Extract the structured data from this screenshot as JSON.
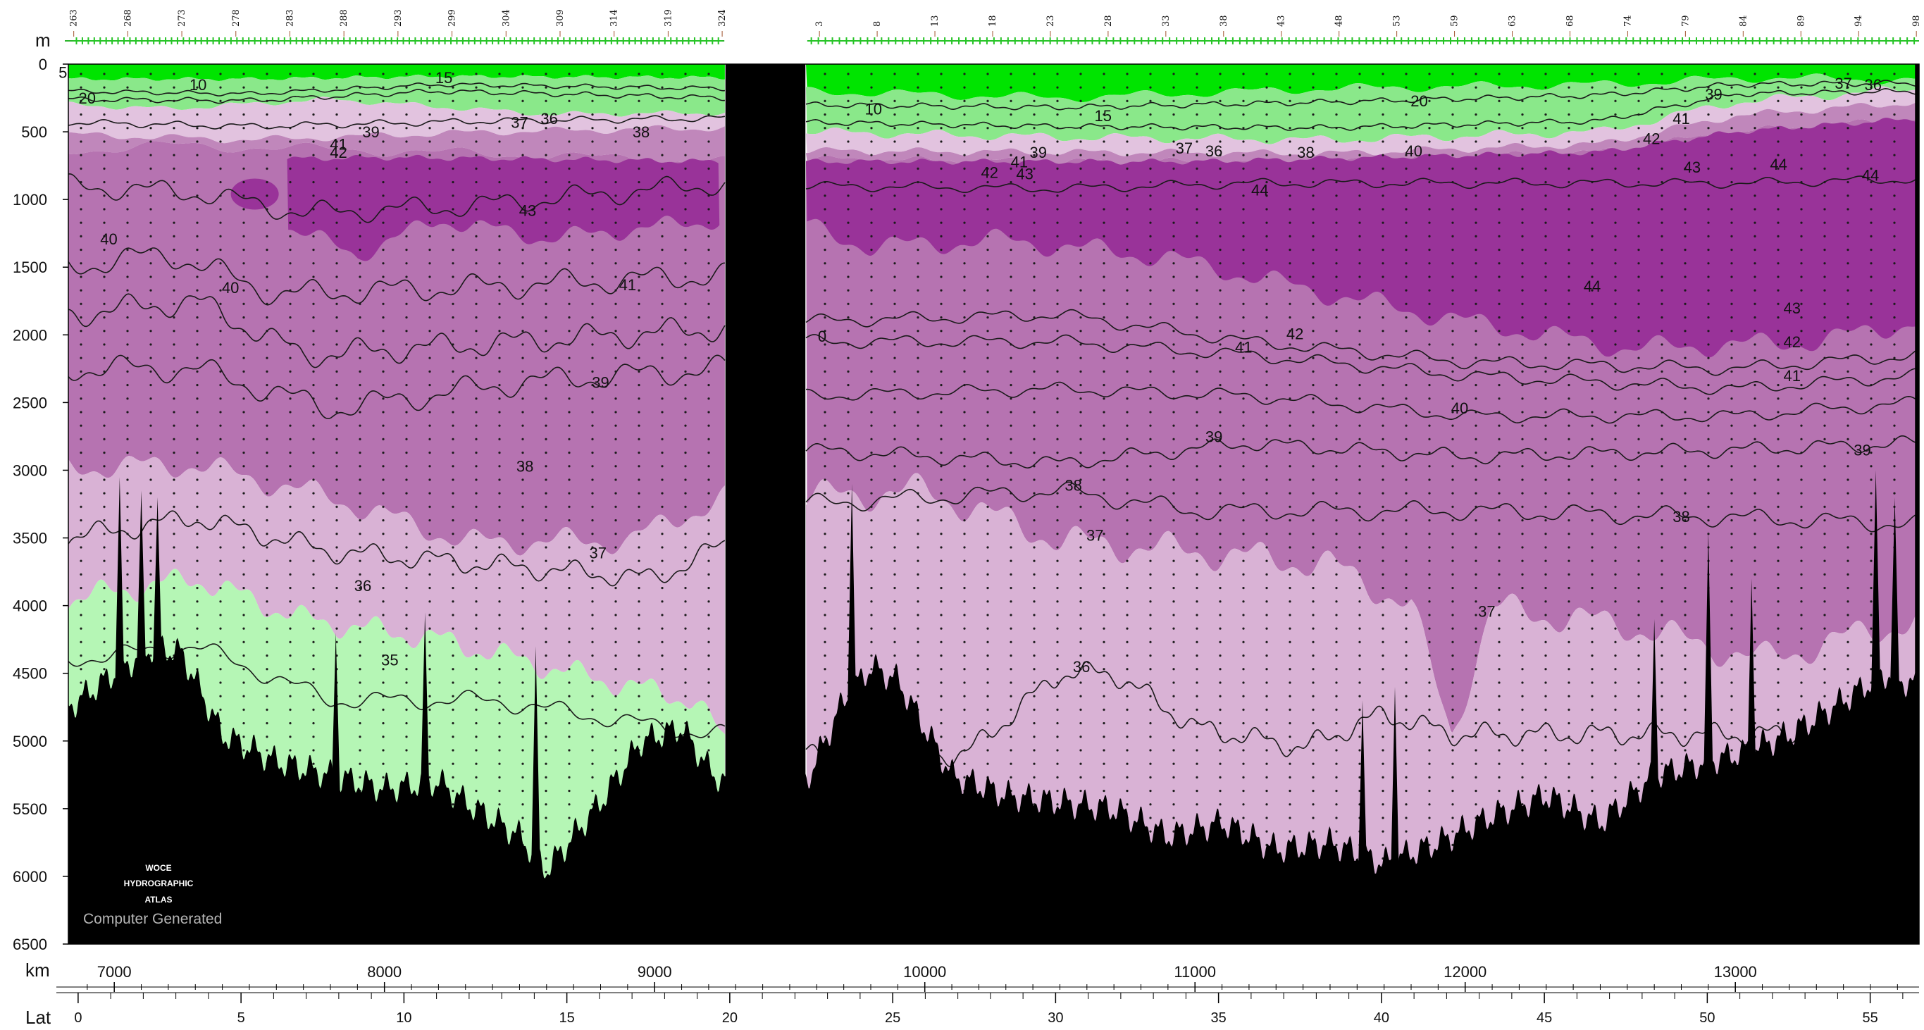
{
  "chart_data": {
    "type": "section-contour",
    "depth_axis": {
      "label": "m",
      "ticks": [
        0,
        500,
        1000,
        1500,
        2000,
        2500,
        3000,
        3500,
        4000,
        4500,
        5000,
        5500,
        6000,
        6500
      ],
      "range": [
        0,
        6500
      ]
    },
    "distance_axis": {
      "label": "km",
      "ticks": [
        7000,
        8000,
        9000,
        10000,
        11000,
        12000,
        13000
      ],
      "range": [
        6830,
        13680
      ]
    },
    "latitude_axis": {
      "label": "Lat",
      "ticks": [
        0,
        5,
        10,
        15,
        20,
        25,
        30,
        35,
        40,
        45,
        50,
        55
      ],
      "range": [
        -0.3,
        56.5
      ]
    },
    "stations": {
      "left": [
        "263",
        "268",
        "273",
        "278",
        "283",
        "288",
        "293",
        "299",
        "304",
        "309",
        "314",
        "319",
        "324"
      ],
      "right": [
        "3",
        "8",
        "13",
        "18",
        "23",
        "28",
        "33",
        "38",
        "43",
        "48",
        "53",
        "59",
        "63",
        "68",
        "74",
        "79",
        "84",
        "89",
        "94",
        "98"
      ]
    },
    "contour_levels": [
      5,
      10,
      15,
      20,
      35,
      36,
      37,
      38,
      39,
      40,
      41,
      42,
      43,
      44
    ],
    "contour_labels": [
      {
        "text": "5",
        "km": 6810,
        "m": 60
      },
      {
        "text": "10",
        "km": 7310,
        "m": 150
      },
      {
        "text": "15",
        "km": 8220,
        "m": 100
      },
      {
        "text": "20",
        "km": 6900,
        "m": 250
      },
      {
        "text": "37",
        "km": 8500,
        "m": 430
      },
      {
        "text": "36",
        "km": 8610,
        "m": 400
      },
      {
        "text": "38",
        "km": 8950,
        "m": 500
      },
      {
        "text": "39",
        "km": 7950,
        "m": 500
      },
      {
        "text": "41",
        "km": 7830,
        "m": 590
      },
      {
        "text": "42",
        "km": 7830,
        "m": 650
      },
      {
        "text": "43",
        "km": 8530,
        "m": 1080
      },
      {
        "text": "40",
        "km": 6980,
        "m": 1290
      },
      {
        "text": "40",
        "km": 7430,
        "m": 1650
      },
      {
        "text": "41",
        "km": 8900,
        "m": 1630
      },
      {
        "text": "39",
        "km": 8800,
        "m": 2350
      },
      {
        "text": "38",
        "km": 8520,
        "m": 2970
      },
      {
        "text": "37",
        "km": 8790,
        "m": 3610
      },
      {
        "text": "36",
        "km": 7920,
        "m": 3850
      },
      {
        "text": "35",
        "km": 8020,
        "m": 4400
      },
      {
        "text": "10",
        "km": 9810,
        "m": 330
      },
      {
        "text": "15",
        "km": 10660,
        "m": 380
      },
      {
        "text": "37",
        "km": 10960,
        "m": 620
      },
      {
        "text": "36",
        "km": 11070,
        "m": 640
      },
      {
        "text": "38",
        "km": 11410,
        "m": 650
      },
      {
        "text": "39",
        "km": 10420,
        "m": 650
      },
      {
        "text": "41",
        "km": 10350,
        "m": 720
      },
      {
        "text": "42",
        "km": 10240,
        "m": 800
      },
      {
        "text": "43",
        "km": 10370,
        "m": 810
      },
      {
        "text": "44",
        "km": 11240,
        "m": 930
      },
      {
        "text": "40",
        "km": 11810,
        "m": 640
      },
      {
        "text": "20",
        "km": 11830,
        "m": 270
      },
      {
        "text": "39",
        "km": 12920,
        "m": 220
      },
      {
        "text": "41",
        "km": 12800,
        "m": 400
      },
      {
        "text": "42",
        "km": 12690,
        "m": 550
      },
      {
        "text": "43",
        "km": 12840,
        "m": 760
      },
      {
        "text": "44",
        "km": 13160,
        "m": 740
      },
      {
        "text": "44",
        "km": 13500,
        "m": 820
      },
      {
        "text": "37",
        "km": 13400,
        "m": 140
      },
      {
        "text": "36",
        "km": 13510,
        "m": 150
      },
      {
        "text": "44",
        "km": 12470,
        "m": 1640
      },
      {
        "text": "42",
        "km": 11370,
        "m": 1990
      },
      {
        "text": "41",
        "km": 11180,
        "m": 2090
      },
      {
        "text": "43",
        "km": 13210,
        "m": 1800
      },
      {
        "text": "42",
        "km": 13210,
        "m": 2050
      },
      {
        "text": "41",
        "km": 13210,
        "m": 2300
      },
      {
        "text": "40",
        "km": 11980,
        "m": 2540
      },
      {
        "text": "39",
        "km": 11070,
        "m": 2750
      },
      {
        "text": "38",
        "km": 10550,
        "m": 3110
      },
      {
        "text": "37",
        "km": 10630,
        "m": 3480
      },
      {
        "text": "38",
        "km": 12800,
        "m": 3340
      },
      {
        "text": "39",
        "km": 13470,
        "m": 2850
      },
      {
        "text": "37",
        "km": 12080,
        "m": 4040
      },
      {
        "text": "36",
        "km": 10580,
        "m": 4450
      },
      {
        "text": "0",
        "km": 9620,
        "m": 2010
      }
    ],
    "colors": {
      "green": "#00e400",
      "light_green_band": "#8ae88a",
      "deep_light_green": "#b5f6b5",
      "lavender": "#e2c3df",
      "light_purple": "#d9b2d5",
      "medium_purple": "#c087bb",
      "purple": "#b673b1",
      "dark_purple": "#993399",
      "bottom": "#000000"
    },
    "grid": false
  },
  "watermark": {
    "line1": "WOCE",
    "line2": "HYDROGRAPHIC",
    "line3": "ATLAS",
    "caption": "Computer Generated"
  }
}
